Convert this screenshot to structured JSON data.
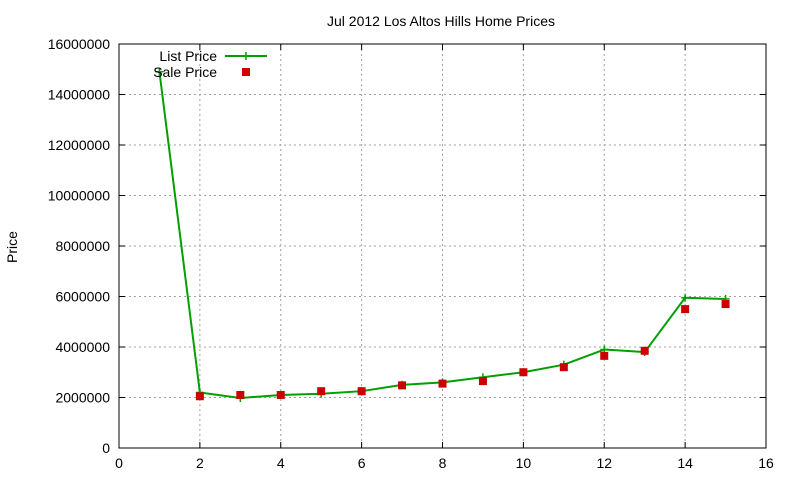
{
  "chart_data": {
    "type": "line",
    "title": "Jul 2012 Los Altos Hills Home Prices",
    "xlabel": "",
    "ylabel": "Price",
    "xlim": [
      0,
      16
    ],
    "ylim": [
      0,
      16000000
    ],
    "x_ticks": [
      0,
      2,
      4,
      6,
      8,
      10,
      12,
      14,
      16
    ],
    "y_ticks": [
      0,
      2000000,
      4000000,
      6000000,
      8000000,
      10000000,
      12000000,
      14000000,
      16000000
    ],
    "grid": true,
    "legend_position": "top-left",
    "series": [
      {
        "name": "List Price",
        "style": "line-plus",
        "color": "#00a000",
        "x": [
          1,
          2,
          3,
          4,
          5,
          6,
          7,
          8,
          9,
          10,
          11,
          12,
          13,
          14,
          15
        ],
        "values": [
          14900000,
          2200000,
          1980000,
          2100000,
          2150000,
          2250000,
          2500000,
          2600000,
          2800000,
          3000000,
          3300000,
          3900000,
          3800000,
          5950000,
          5900000
        ]
      },
      {
        "name": "Sale Price",
        "style": "square",
        "color": "#cc0000",
        "x": [
          2,
          3,
          4,
          5,
          6,
          7,
          8,
          9,
          10,
          11,
          12,
          13,
          14,
          15
        ],
        "values": [
          2050000,
          2100000,
          2100000,
          2250000,
          2250000,
          2480000,
          2550000,
          2650000,
          3000000,
          3200000,
          3650000,
          3850000,
          5500000,
          5700000
        ]
      }
    ]
  }
}
